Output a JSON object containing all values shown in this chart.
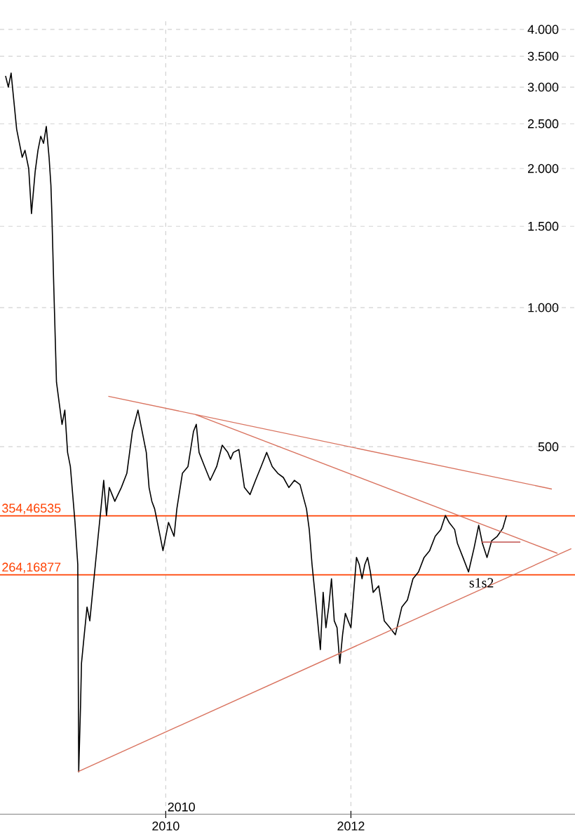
{
  "chart_data": {
    "type": "line",
    "xlim": [
      2008.21,
      2014.42
    ],
    "ylim": [
      80,
      4200
    ],
    "log": "y",
    "grid": true,
    "marker": "none",
    "line_style": "solid",
    "xticks": [
      2010,
      2012
    ],
    "yticks": [
      {
        "value": 500,
        "label": "500"
      },
      {
        "value": 1000,
        "label": "1.000"
      },
      {
        "value": 1500,
        "label": "1.500"
      },
      {
        "value": 2000,
        "label": "2.000"
      },
      {
        "value": 2500,
        "label": "2.500"
      },
      {
        "value": 3000,
        "label": "3.000"
      },
      {
        "value": 3500,
        "label": "3.500"
      },
      {
        "value": 4000,
        "label": "4.000"
      }
    ],
    "series": [
      {
        "color": "#000000",
        "x": [
          2008.27,
          2008.3,
          2008.33,
          2008.36,
          2008.39,
          2008.42,
          2008.45,
          2008.48,
          2008.52,
          2008.55,
          2008.59,
          2008.62,
          2008.65,
          2008.68,
          2008.71,
          2008.74,
          2008.76,
          2008.77,
          2008.79,
          2008.82,
          2008.85,
          2008.88,
          2008.91,
          2008.94,
          2008.97,
          2009.02,
          2009.05,
          2009.06,
          2009.08,
          2009.09,
          2009.12,
          2009.15,
          2009.18,
          2009.21,
          2009.24,
          2009.27,
          2009.3,
          2009.33,
          2009.36,
          2009.39,
          2009.45,
          2009.52,
          2009.58,
          2009.64,
          2009.7,
          2009.73,
          2009.79,
          2009.82,
          2009.85,
          2009.88,
          2009.91,
          2009.94,
          2009.97,
          2010.03,
          2010.09,
          2010.12,
          2010.18,
          2010.24,
          2010.3,
          2010.33,
          2010.36,
          2010.42,
          2010.48,
          2010.55,
          2010.61,
          2010.67,
          2010.7,
          2010.73,
          2010.79,
          2010.85,
          2010.91,
          2010.97,
          2011.03,
          2011.09,
          2011.15,
          2011.21,
          2011.27,
          2011.33,
          2011.39,
          2011.45,
          2011.52,
          2011.55,
          2011.58,
          2011.61,
          2011.64,
          2011.67,
          2011.7,
          2011.73,
          2011.76,
          2011.79,
          2011.82,
          2011.85,
          2011.88,
          2011.91,
          2011.94,
          2011.97,
          2012.0,
          2012.03,
          2012.06,
          2012.09,
          2012.12,
          2012.15,
          2012.18,
          2012.21,
          2012.24,
          2012.3,
          2012.36,
          2012.42,
          2012.48,
          2012.55,
          2012.61,
          2012.67,
          2012.73,
          2012.79,
          2012.85,
          2012.91,
          2012.97,
          2013.02,
          2013.06,
          2013.12,
          2013.15,
          2013.21,
          2013.27,
          2013.33,
          2013.38,
          2013.42,
          2013.47,
          2013.52,
          2013.58,
          2013.64,
          2013.68
        ],
        "values": [
          3173,
          3001,
          3218,
          2797,
          2432,
          2268,
          2115,
          2190,
          2000,
          1598,
          1972,
          2190,
          2349,
          2268,
          2466,
          2115,
          1838,
          1598,
          1126,
          690,
          621,
          559,
          600,
          486,
          453,
          343,
          278,
          99,
          138,
          170,
          196,
          225,
          210,
          242,
          278,
          320,
          367,
          423,
          355,
          408,
          381,
          408,
          438,
          540,
          600,
          559,
          486,
          408,
          381,
          367,
          343,
          320,
          298,
          343,
          320,
          367,
          438,
          453,
          540,
          559,
          486,
          453,
          423,
          453,
          504,
          486,
          470,
          486,
          493,
          408,
          394,
          423,
          453,
          486,
          453,
          438,
          429,
          408,
          423,
          414,
          367,
          331,
          278,
          242,
          210,
          182,
          242,
          203,
          225,
          259,
          210,
          203,
          170,
          196,
          218,
          210,
          203,
          242,
          288,
          278,
          259,
          278,
          288,
          268,
          242,
          250,
          210,
          203,
          196,
          225,
          233,
          259,
          268,
          288,
          298,
          320,
          331,
          355,
          343,
          331,
          309,
          288,
          268,
          302,
          338,
          309,
          288,
          313,
          320,
          333,
          355
        ]
      },
      {
        "type": "line",
        "color": "#d9735f",
        "x": [
          2009.38,
          2014.17
        ],
        "values": [
          643,
          405
        ]
      },
      {
        "type": "line",
        "color": "#d9735f",
        "x": [
          2010.32,
          2014.23
        ],
        "values": [
          587,
          294
        ]
      },
      {
        "type": "line",
        "color": "#d9735f",
        "x": [
          2009.05,
          2014.38
        ],
        "values": [
          99,
          301
        ]
      },
      {
        "type": "line",
        "color": "#c0504d",
        "x": [
          2013.41,
          2013.83
        ],
        "values": [
          311,
          311
        ]
      }
    ],
    "ref_lines": [
      {
        "axis": "y",
        "value": 354.46535,
        "label": "354,46535",
        "color": "#ff4000"
      },
      {
        "axis": "y",
        "value": 264.16877,
        "label": "264,16877",
        "color": "#ff4000"
      }
    ],
    "annotations": [
      "2010",
      {
        "text": "s1s2",
        "x": 2013.41,
        "y": 262
      }
    ]
  }
}
